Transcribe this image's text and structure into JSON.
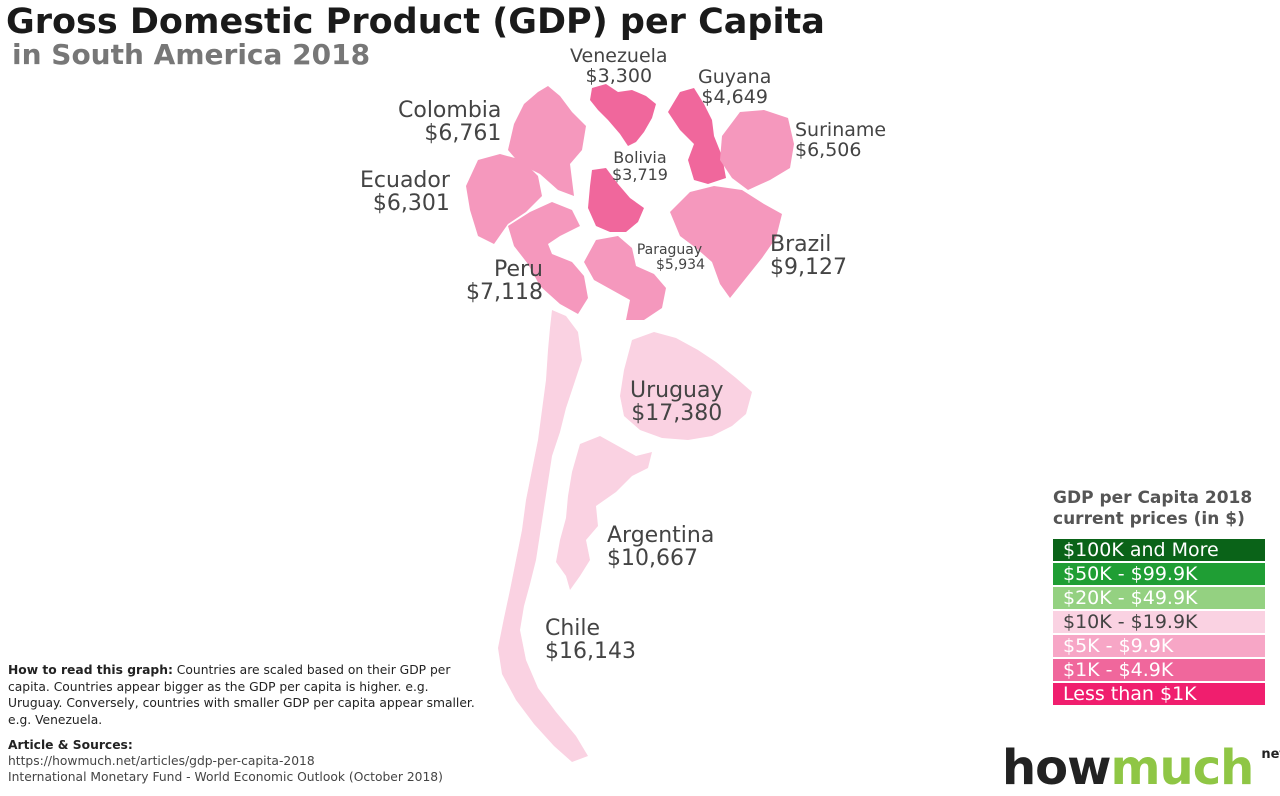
{
  "title": "Gross Domestic Product (GDP) per Capita",
  "subtitle": "in South America 2018",
  "countries": [
    {
      "name": "Venezuela",
      "value": "$3,300",
      "fill": "#f0679c"
    },
    {
      "name": "Guyana",
      "value": "$4,649",
      "fill": "#f0679c"
    },
    {
      "name": "Colombia",
      "value": "$6,761",
      "fill": "#f598bd"
    },
    {
      "name": "Suriname",
      "value": "$6,506",
      "fill": "#f598bd"
    },
    {
      "name": "Bolivia",
      "value": "$3,719",
      "fill": "#f0679c"
    },
    {
      "name": "Ecuador",
      "value": "$6,301",
      "fill": "#f598bd"
    },
    {
      "name": "Brazil",
      "value": "$9,127",
      "fill": "#f598bd"
    },
    {
      "name": "Paraguay",
      "value": "$5,934",
      "fill": "#f598bd"
    },
    {
      "name": "Peru",
      "value": "$7,118",
      "fill": "#f598bd"
    },
    {
      "name": "Uruguay",
      "value": "$17,380",
      "fill": "#fad2e2"
    },
    {
      "name": "Argentina",
      "value": "$10,667",
      "fill": "#fad2e2"
    },
    {
      "name": "Chile",
      "value": "$16,143",
      "fill": "#fad2e2"
    }
  ],
  "legend": {
    "title_line1": "GDP per Capita 2018",
    "title_line2": "current prices (in $)",
    "items": [
      {
        "label": "$100K and More",
        "color": "#0a6318",
        "text_color": "#ffffff"
      },
      {
        "label": "$50K - $99.9K",
        "color": "#1f9e34",
        "text_color": "#ffffff"
      },
      {
        "label": "$20K - $49.9K",
        "color": "#94d181",
        "text_color": "#ffffff"
      },
      {
        "label": "$10K - $19.9K",
        "color": "#fad2e2",
        "text_color": "#444444"
      },
      {
        "label": "$5K - $9.9K",
        "color": "#f7a6c6",
        "text_color": "#ffffff"
      },
      {
        "label": "$1K - $4.9K",
        "color": "#f0679c",
        "text_color": "#ffffff"
      },
      {
        "label": "Less than $1K",
        "color": "#f01e6e",
        "text_color": "#ffffff"
      }
    ]
  },
  "notes": {
    "heading": "How to read this graph:",
    "text": "Countries are scaled based on their GDP per capita. Countries appear bigger as the GDP per capita is higher. e.g. Uruguay. Conversely, countries with smaller GDP per capita appear smaller. e.g. Venezuela."
  },
  "sources": {
    "heading": "Article & Sources:",
    "url": "https://howmuch.net/articles/gdp-per-capita-2018",
    "ref": "International Monetary Fund - World Economic Outlook (October 2018)"
  },
  "brand": {
    "how": "how",
    "much": "much",
    "net": "net"
  }
}
